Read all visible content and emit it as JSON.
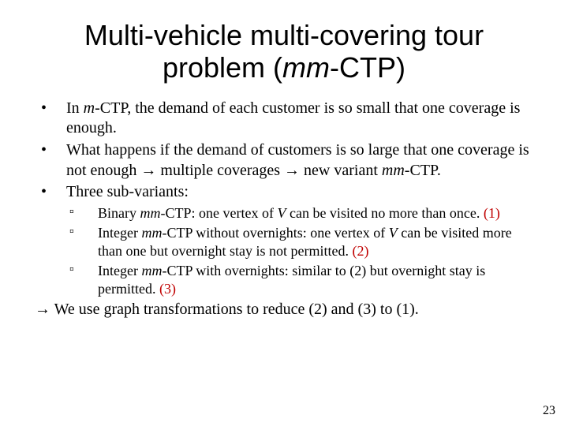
{
  "title_pre": "Multi-vehicle multi-covering tour problem (",
  "title_italic": "mm",
  "title_post": "-CTP)",
  "b1_pre": "In ",
  "b1_it": "m",
  "b1_post": "-CTP, the demand of each customer is so small that one coverage is enough.",
  "b2_pre": "What happens if the demand of customers is so large that one coverage is not enough → multiple coverages → new variant ",
  "b2_it": "mm",
  "b2_post": "-CTP.",
  "b3": "Three sub-variants:",
  "s1_pre": "Binary ",
  "s1_it1": "mm",
  "s1_mid": "-CTP: one vertex of ",
  "s1_it2": "V",
  "s1_post": " can be visited no more than once. ",
  "s1_tag": "(1)",
  "s2_pre": "Integer ",
  "s2_it1": "mm",
  "s2_mid": "-CTP without overnights: one vertex of ",
  "s2_it2": "V",
  "s2_post": " can be visited more than one but overnight  stay is not permitted. ",
  "s2_tag": "(2)",
  "s3_pre": "Integer ",
  "s3_it1": "mm",
  "s3_post": "-CTP with overnights: similar to (2) but overnight stay is permitted. ",
  "s3_tag": "(3)",
  "conclusion": "→ We use graph transformations to reduce (2) and (3) to (1).",
  "page_number": "23",
  "colors": {
    "text": "#000000",
    "accent_red": "#c00000",
    "background": "#ffffff"
  },
  "fonts": {
    "title_family": "Trebuchet MS / sans-serif",
    "body_family": "Georgia / serif",
    "title_size_pt": 36,
    "body_size_pt": 20,
    "sub_size_pt": 18
  }
}
